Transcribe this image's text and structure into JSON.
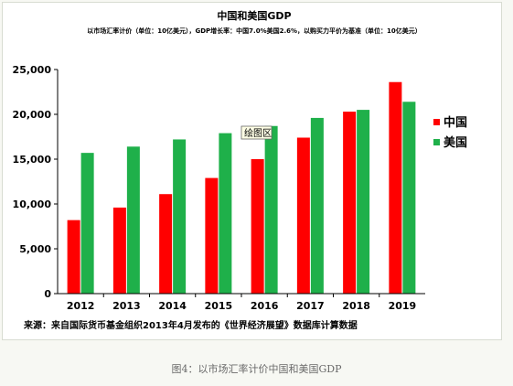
{
  "chart_data": {
    "type": "bar",
    "title": "中国和美国GDP",
    "subtitle": "以市场汇率计价（单位：10亿美元），GDP增长率：中国7.0%美国2.6%，以购买力平价为基准（单位：10亿美元）",
    "categories": [
      "2012",
      "2013",
      "2014",
      "2015",
      "2016",
      "2017",
      "2018",
      "2019"
    ],
    "series": [
      {
        "name": "中国",
        "color": "#ff0000",
        "values": [
          8200,
          9600,
          11100,
          12900,
          15000,
          17400,
          20300,
          23600
        ]
      },
      {
        "name": "美国",
        "color": "#1fb04a",
        "values": [
          15700,
          16400,
          17200,
          17900,
          18700,
          19600,
          20500,
          21400
        ]
      }
    ],
    "yticks": [
      "0",
      "5,000",
      "10,000",
      "15,000",
      "20,000",
      "25,000"
    ],
    "ylim": [
      0,
      25000
    ],
    "grid": false,
    "legend": "right",
    "tooltip": "绘图区",
    "source": "来源：来自国际货币基金组织2013年4月发布的《世界经济展望》数据库计算数据"
  },
  "caption": "图4：以市场汇率计价中国和美国GDP"
}
